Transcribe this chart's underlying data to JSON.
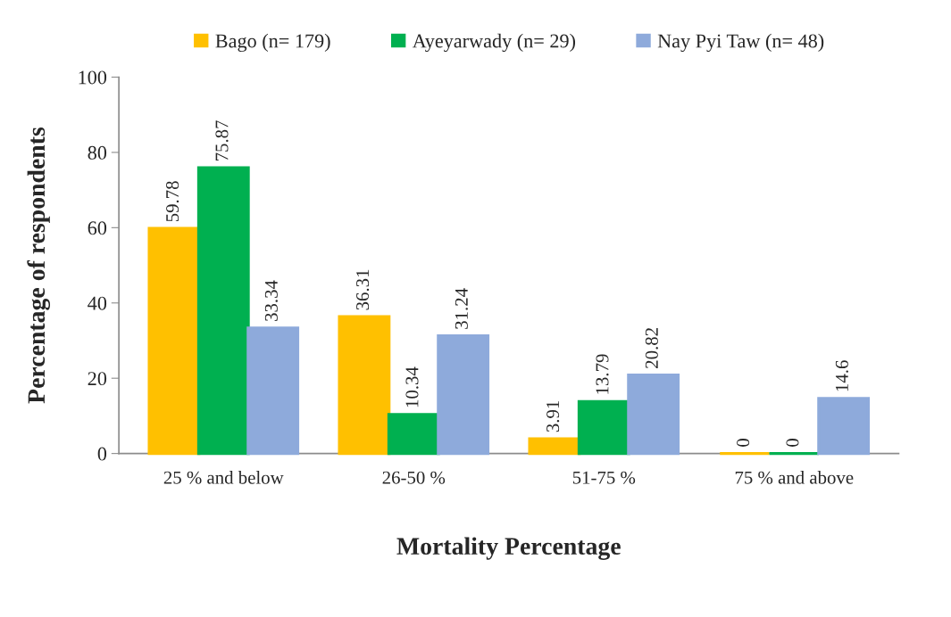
{
  "chart_data": {
    "type": "bar",
    "xlabel": "Mortality Percentage",
    "ylabel": "Percentage of respondents",
    "categories": [
      "25 % and below",
      "26-50 %",
      "51-75 %",
      "75 % and above"
    ],
    "series": [
      {
        "name": "Bago (n= 179)",
        "color": "#ffc000",
        "values": [
          59.78,
          36.31,
          3.91,
          0
        ]
      },
      {
        "name": "Ayeyarwady (n= 29)",
        "color": "#00b050",
        "values": [
          75.87,
          10.34,
          13.79,
          0
        ]
      },
      {
        "name": "Nay Pyi Taw (n= 48)",
        "color": "#8eaadb",
        "values": [
          33.34,
          31.24,
          20.82,
          14.6
        ]
      }
    ],
    "ylim": [
      0,
      100
    ],
    "yticks": [
      0,
      20,
      40,
      60,
      80,
      100
    ],
    "grid": false,
    "legend": "top",
    "data_labels": true
  }
}
